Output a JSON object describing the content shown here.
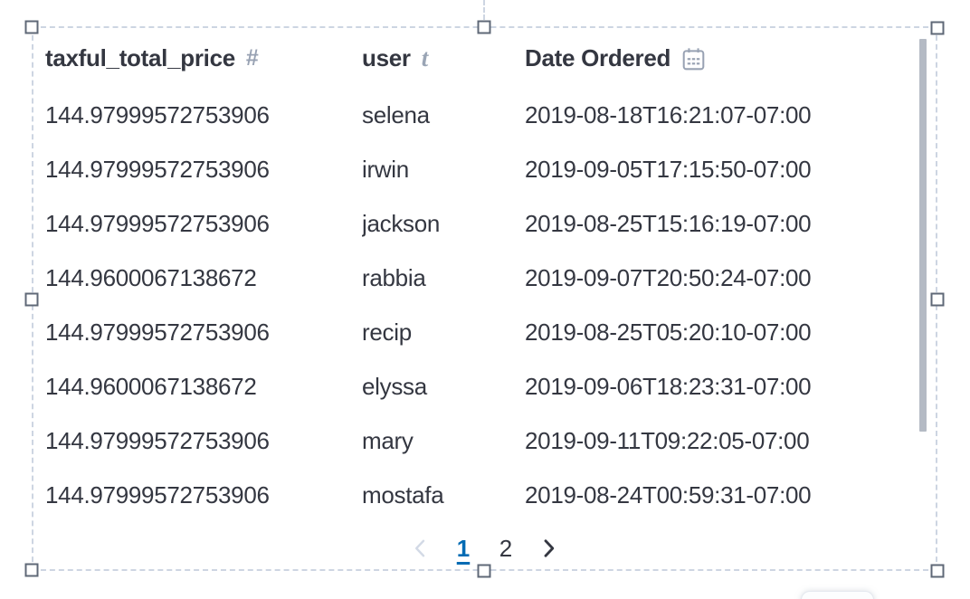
{
  "table": {
    "columns": [
      {
        "label": "taxful_total_price",
        "type": "number",
        "icon": "hash-number-icon",
        "glyph": "#"
      },
      {
        "label": "user",
        "type": "string",
        "icon": "string-type-icon",
        "glyph": "t"
      },
      {
        "label": "Date Ordered",
        "type": "date",
        "icon": "calendar-icon",
        "glyph": ""
      }
    ],
    "rows": [
      [
        "144.97999572753906",
        "selena",
        "2019-08-18T16:21:07-07:00"
      ],
      [
        "144.97999572753906",
        "irwin",
        "2019-09-05T17:15:50-07:00"
      ],
      [
        "144.97999572753906",
        "jackson",
        "2019-08-25T15:16:19-07:00"
      ],
      [
        "144.9600067138672",
        "rabbia",
        "2019-09-07T20:50:24-07:00"
      ],
      [
        "144.97999572753906",
        "recip",
        "2019-08-25T05:20:10-07:00"
      ],
      [
        "144.9600067138672",
        "elyssa",
        "2019-09-06T18:23:31-07:00"
      ],
      [
        "144.97999572753906",
        "mary",
        "2019-09-11T09:22:05-07:00"
      ],
      [
        "144.97999572753906",
        "mostafa",
        "2019-08-24T00:59:31-07:00"
      ]
    ]
  },
  "pagination": {
    "pages": [
      "1",
      "2"
    ],
    "active_page": "1",
    "prev_enabled": false,
    "next_enabled": true
  },
  "colors": {
    "text": "#343741",
    "icon_gray": "#98A2B3",
    "active_page_blue": "#006BB4",
    "selection_dash": "#CDD5E2",
    "handle_border": "#5F6877",
    "scrollbar": "#B4BAC4"
  }
}
